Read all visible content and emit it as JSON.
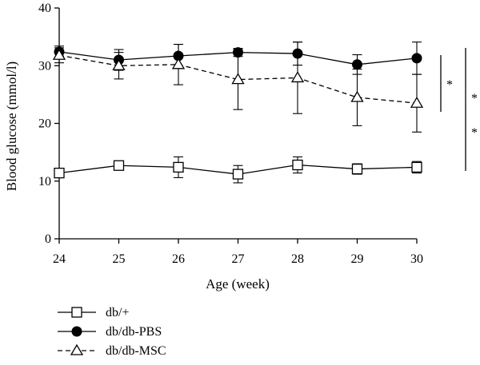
{
  "chart_data": {
    "type": "line",
    "x": [
      24,
      25,
      26,
      27,
      28,
      29,
      30
    ],
    "xlabel": "Age (week)",
    "ylabel": "Blood glucose (mmol/l)",
    "xlim": [
      24,
      30
    ],
    "ylim": [
      0,
      40
    ],
    "yticks": [
      0,
      10,
      20,
      30,
      40
    ],
    "grid": false,
    "legend_position": "bottom-left",
    "series": [
      {
        "name": "db/+",
        "marker": "open-square",
        "dash": "solid",
        "values": [
          11.4,
          12.7,
          12.4,
          11.2,
          12.8,
          12.1,
          12.4
        ],
        "errors": [
          0.5,
          0.5,
          1.8,
          1.5,
          1.4,
          0.9,
          1.0
        ]
      },
      {
        "name": "db/db-PBS",
        "marker": "filled-circle",
        "dash": "solid",
        "values": [
          32.4,
          31.0,
          31.7,
          32.3,
          32.1,
          30.2,
          31.3
        ],
        "errors": [
          1.0,
          1.8,
          2.0,
          0.7,
          2.0,
          1.7,
          2.8
        ]
      },
      {
        "name": "db/db-MSC",
        "marker": "open-triangle",
        "dash": "dashed",
        "values": [
          31.8,
          30.0,
          30.2,
          27.6,
          27.9,
          24.5,
          23.5
        ],
        "errors": [
          1.3,
          2.3,
          3.5,
          5.2,
          6.2,
          4.9,
          5.0
        ]
      }
    ],
    "annotations": [
      {
        "text": "*",
        "between": [
          "db/db-PBS",
          "db/db-MSC"
        ]
      },
      {
        "text": "*",
        "between": [
          "db/db-PBS",
          "db/+"
        ]
      },
      {
        "text": "*",
        "between": [
          "db/db-PBS",
          "db/+"
        ]
      }
    ]
  }
}
